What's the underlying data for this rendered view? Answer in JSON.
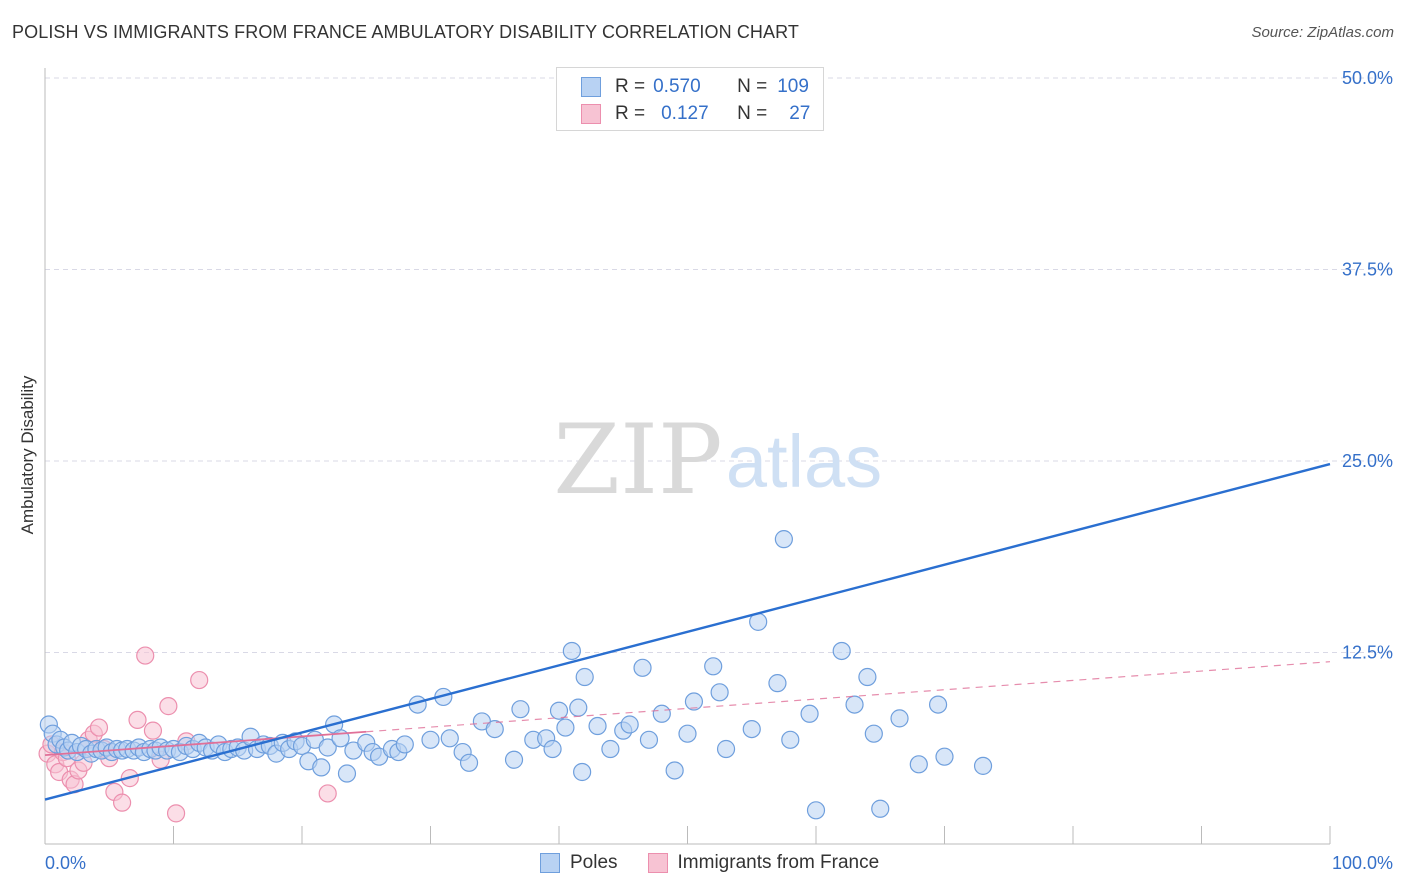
{
  "title": "POLISH VS IMMIGRANTS FROM FRANCE AMBULATORY DISABILITY CORRELATION CHART",
  "source": "Source: ZipAtlas.com",
  "watermark": {
    "zip": "ZIP",
    "atlas": "atlas"
  },
  "colors": {
    "blue_fill": "#b8d2f3",
    "blue_stroke": "#6f9fdd",
    "blue_line": "#2a6fd0",
    "pink_fill": "#f7c3d3",
    "pink_stroke": "#ec8fae",
    "pink_line": "#e07098",
    "axis_text": "#3570c9",
    "grid": "#d9d9e6"
  },
  "legend_top": [
    {
      "r_label": "R =",
      "r_value": "0.570",
      "n_label": "N =",
      "n_value": "109"
    },
    {
      "r_label": "R =",
      "r_value": "0.127",
      "n_label": "N =",
      "n_value": "27"
    }
  ],
  "chart_data": {
    "type": "scatter",
    "ylabel": "Ambulatory Disability",
    "xlim": [
      0,
      100
    ],
    "ylim": [
      0,
      50
    ],
    "x_tick_labels": [
      "0.0%",
      "100.0%"
    ],
    "y_ticks": [
      12.5,
      25.0,
      37.5,
      50.0
    ],
    "y_tick_labels": [
      "12.5%",
      "25.0%",
      "37.5%",
      "50.0%"
    ],
    "x_minor_ticks": [
      0,
      10,
      20,
      30,
      40,
      50,
      60,
      70,
      80,
      90,
      100
    ],
    "legend": [
      "Poles",
      "Immigrants from France"
    ],
    "series": [
      {
        "name": "Poles",
        "trend": {
          "x": [
            0,
            100
          ],
          "y": [
            2.9,
            24.8
          ],
          "style": "solid"
        },
        "points": [
          [
            0.3,
            7.8
          ],
          [
            0.6,
            7.2
          ],
          [
            0.9,
            6.5
          ],
          [
            1.2,
            6.8
          ],
          [
            1.5,
            6.3
          ],
          [
            1.8,
            6.1
          ],
          [
            2.1,
            6.6
          ],
          [
            2.5,
            6.0
          ],
          [
            2.8,
            6.4
          ],
          [
            3.2,
            6.2
          ],
          [
            3.6,
            5.9
          ],
          [
            4.0,
            6.2
          ],
          [
            4.4,
            6.1
          ],
          [
            4.8,
            6.3
          ],
          [
            5.2,
            6.0
          ],
          [
            5.6,
            6.2
          ],
          [
            6.0,
            6.1
          ],
          [
            6.4,
            6.2
          ],
          [
            6.9,
            6.1
          ],
          [
            7.3,
            6.3
          ],
          [
            7.7,
            6.0
          ],
          [
            8.2,
            6.2
          ],
          [
            8.6,
            6.1
          ],
          [
            9.0,
            6.3
          ],
          [
            9.5,
            6.1
          ],
          [
            10.0,
            6.2
          ],
          [
            10.5,
            6.0
          ],
          [
            11.0,
            6.4
          ],
          [
            11.5,
            6.2
          ],
          [
            12.0,
            6.6
          ],
          [
            12.5,
            6.3
          ],
          [
            13.0,
            6.1
          ],
          [
            13.5,
            6.5
          ],
          [
            14.0,
            6.0
          ],
          [
            14.5,
            6.2
          ],
          [
            15.0,
            6.3
          ],
          [
            15.5,
            6.1
          ],
          [
            16.0,
            7.0
          ],
          [
            16.5,
            6.2
          ],
          [
            17.0,
            6.5
          ],
          [
            17.5,
            6.4
          ],
          [
            18.0,
            5.9
          ],
          [
            18.5,
            6.6
          ],
          [
            19.0,
            6.2
          ],
          [
            19.5,
            6.7
          ],
          [
            20.0,
            6.4
          ],
          [
            20.5,
            5.4
          ],
          [
            21.0,
            6.8
          ],
          [
            22.0,
            6.3
          ],
          [
            22.5,
            7.8
          ],
          [
            23.0,
            6.9
          ],
          [
            24.0,
            6.1
          ],
          [
            25.0,
            6.6
          ],
          [
            25.5,
            6.0
          ],
          [
            26.0,
            5.7
          ],
          [
            21.5,
            5.0
          ],
          [
            23.5,
            4.6
          ],
          [
            27.0,
            6.2
          ],
          [
            27.5,
            6.0
          ],
          [
            28.0,
            6.5
          ],
          [
            29.0,
            9.1
          ],
          [
            30.0,
            6.8
          ],
          [
            31.0,
            9.6
          ],
          [
            31.5,
            6.9
          ],
          [
            32.5,
            6.0
          ],
          [
            33.0,
            5.3
          ],
          [
            34.0,
            8.0
          ],
          [
            35.0,
            7.5
          ],
          [
            36.5,
            5.5
          ],
          [
            37.0,
            8.8
          ],
          [
            38.0,
            6.8
          ],
          [
            39.0,
            6.9
          ],
          [
            39.5,
            6.2
          ],
          [
            40.0,
            8.7
          ],
          [
            40.5,
            7.6
          ],
          [
            41.5,
            8.9
          ],
          [
            42.0,
            10.9
          ],
          [
            43.0,
            7.7
          ],
          [
            44.0,
            6.2
          ],
          [
            45.0,
            7.4
          ],
          [
            45.5,
            7.8
          ],
          [
            46.5,
            11.5
          ],
          [
            47.0,
            6.8
          ],
          [
            48.0,
            8.5
          ],
          [
            49.0,
            4.8
          ],
          [
            50.0,
            7.2
          ],
          [
            50.5,
            9.3
          ],
          [
            52.0,
            11.6
          ],
          [
            53.0,
            6.2
          ],
          [
            55.0,
            7.5
          ],
          [
            57.0,
            10.5
          ],
          [
            58.0,
            6.8
          ],
          [
            59.5,
            8.5
          ],
          [
            62.0,
            12.6
          ],
          [
            63.0,
            9.1
          ],
          [
            64.0,
            10.9
          ],
          [
            64.5,
            7.2
          ],
          [
            66.5,
            8.2
          ],
          [
            69.5,
            9.1
          ],
          [
            70.0,
            5.7
          ],
          [
            73.0,
            5.1
          ],
          [
            68.0,
            5.2
          ],
          [
            60.0,
            2.2
          ],
          [
            65.0,
            2.3
          ],
          [
            41.0,
            12.6
          ],
          [
            41.8,
            4.7
          ],
          [
            52.5,
            9.9
          ],
          [
            55.5,
            14.5
          ],
          [
            57.5,
            19.9
          ]
        ]
      },
      {
        "name": "Immigrants from France",
        "trend": {
          "x": [
            0,
            100
          ],
          "y": [
            5.8,
            11.9
          ],
          "style": "dashed"
        },
        "points": [
          [
            0.2,
            5.9
          ],
          [
            0.5,
            6.5
          ],
          [
            0.8,
            5.2
          ],
          [
            1.1,
            4.7
          ],
          [
            1.4,
            6.0
          ],
          [
            1.7,
            5.6
          ],
          [
            2.0,
            4.2
          ],
          [
            2.3,
            3.9
          ],
          [
            2.6,
            4.8
          ],
          [
            3.0,
            5.3
          ],
          [
            3.4,
            6.8
          ],
          [
            3.8,
            7.2
          ],
          [
            4.2,
            7.6
          ],
          [
            4.6,
            6.2
          ],
          [
            5.0,
            5.6
          ],
          [
            5.4,
            3.4
          ],
          [
            6.0,
            2.7
          ],
          [
            6.6,
            4.3
          ],
          [
            7.2,
            8.1
          ],
          [
            7.8,
            12.3
          ],
          [
            8.4,
            7.4
          ],
          [
            9.0,
            5.5
          ],
          [
            9.6,
            9.0
          ],
          [
            10.2,
            2.0
          ],
          [
            11.0,
            6.7
          ],
          [
            12.0,
            10.7
          ],
          [
            22.0,
            3.3
          ]
        ]
      }
    ]
  }
}
